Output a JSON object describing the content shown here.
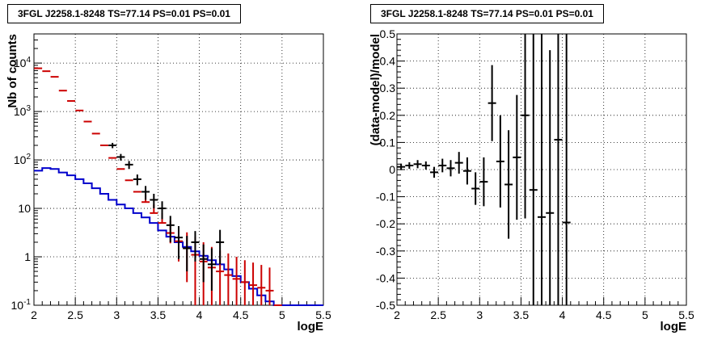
{
  "chart_data": [
    {
      "type": "scatter",
      "title": "3FGL J2258.1-8248 TS=77.14 PS=0.01 PS=0.01",
      "xlabel": "logE",
      "ylabel": "Nb of counts",
      "xlim": [
        2,
        5.5
      ],
      "ylim": [
        0.1,
        40000
      ],
      "yscale": "log",
      "grid": true,
      "x_ticks": [
        "2",
        "2.5",
        "3",
        "3.5",
        "4",
        "4.5",
        "5",
        "5.5"
      ],
      "y_ticks": [
        "10^{-1}",
        "1",
        "10",
        "10^{2}",
        "10^{3}",
        "10^{4}"
      ],
      "series": [
        {
          "color": "#cc0000",
          "x": [
            2.05,
            2.15,
            2.25,
            2.35,
            2.45,
            2.55,
            2.65,
            2.75,
            2.85,
            2.95,
            3.05,
            3.15,
            3.25,
            3.35,
            3.45,
            3.55,
            3.65,
            3.75,
            3.85,
            3.95,
            4.05,
            4.15,
            4.25,
            4.35,
            4.45,
            4.55,
            4.65,
            4.75,
            4.85,
            4.95
          ],
          "y": [
            7800,
            6800,
            5200,
            2700,
            1650,
            1050,
            620,
            350,
            200,
            110,
            65,
            38,
            22,
            13.5,
            8,
            5,
            3.1,
            2.1,
            1.5,
            1.1,
            0.8,
            0.6,
            0.5,
            0.42,
            0.35,
            0.3,
            0.26,
            0.23,
            0.2,
            0.1
          ],
          "err_lo": [
            0,
            0,
            0,
            0,
            0,
            0,
            0,
            0,
            0,
            0,
            0,
            0,
            0,
            0,
            0,
            0,
            1.2,
            1.3,
            1.2,
            1.0,
            0.75,
            0.58,
            0.49,
            0.41,
            0.345,
            0.295,
            0.255,
            0.225,
            0.195,
            0
          ],
          "err_hi": [
            0,
            0,
            0,
            0,
            0,
            0,
            0,
            0,
            0,
            0,
            0,
            0,
            0,
            6,
            4,
            3,
            2.5,
            2.0,
            1.7,
            1.5,
            1.2,
            1.0,
            0.85,
            0.75,
            0.65,
            0.55,
            0.5,
            0.45,
            0.4,
            0
          ]
        },
        {
          "color": "#000000",
          "x": [
            2.95,
            3.05,
            3.15,
            3.25,
            3.35,
            3.45,
            3.55,
            3.65,
            3.75,
            3.85,
            3.95,
            4.05,
            4.15,
            4.25
          ],
          "y": [
            200,
            115,
            80,
            40,
            22,
            15,
            10,
            4.5,
            2.5,
            1.5,
            2.0,
            0.9,
            0.7,
            2.0
          ],
          "err_lo": [
            25,
            18,
            15,
            10,
            7,
            5,
            4,
            2.5,
            1.6,
            1.0,
            1.2,
            0.6,
            0.5,
            1.3
          ],
          "err_hi": [
            25,
            18,
            15,
            10,
            7,
            5,
            4,
            2.5,
            1.8,
            1.2,
            1.4,
            0.9,
            0.8,
            1.6
          ]
        },
        {
          "type": "step",
          "color": "#0000cc",
          "edges": [
            2.0,
            2.1,
            2.2,
            2.3,
            2.4,
            2.5,
            2.6,
            2.7,
            2.8,
            2.9,
            3.0,
            3.1,
            3.2,
            3.3,
            3.4,
            3.5,
            3.6,
            3.7,
            3.8,
            3.9,
            4.0,
            4.1,
            4.2,
            4.3,
            4.4,
            4.5,
            4.6,
            4.7,
            4.8,
            4.9,
            5.0,
            5.1,
            5.2,
            5.3,
            5.4,
            5.5
          ],
          "values": [
            60,
            68,
            65,
            55,
            48,
            40,
            33,
            26,
            20,
            15,
            12,
            10,
            8,
            6.5,
            5,
            3.5,
            2.6,
            2.0,
            1.6,
            1.3,
            1.05,
            0.85,
            0.7,
            0.55,
            0.4,
            0.3,
            0.22,
            0.16,
            0.12,
            0.1,
            0.1,
            0.1,
            0.1,
            0.1,
            0.1
          ]
        }
      ]
    },
    {
      "type": "scatter",
      "title": "3FGL J2258.1-8248 TS=77.14 PS=0.01 PS=0.01",
      "xlabel": "logE",
      "ylabel": "(data-model)/model",
      "xlim": [
        2,
        5.5
      ],
      "ylim": [
        -0.5,
        0.5
      ],
      "grid": true,
      "x_ticks": [
        "2",
        "2.5",
        "3",
        "3.5",
        "4",
        "4.5",
        "5",
        "5.5"
      ],
      "y_ticks": [
        "-0.5",
        "-0.4",
        "-0.3",
        "-0.2",
        "-0.1",
        "0",
        "0.1",
        "0.2",
        "0.3",
        "0.4",
        "0.5"
      ],
      "series": [
        {
          "color": "#000000",
          "x": [
            2.05,
            2.15,
            2.25,
            2.35,
            2.45,
            2.55,
            2.65,
            2.75,
            2.85,
            2.95,
            3.05,
            3.15,
            3.25,
            3.35,
            3.45,
            3.55,
            3.65,
            3.75,
            3.85,
            3.95,
            4.05
          ],
          "y": [
            0.01,
            0.015,
            0.02,
            0.015,
            -0.01,
            0.015,
            0.005,
            0.025,
            -0.005,
            -0.07,
            -0.045,
            0.245,
            0.03,
            -0.055,
            0.045,
            0.2,
            -0.075,
            -0.175,
            -0.16,
            0.11,
            -0.195
          ],
          "err": [
            0.012,
            0.012,
            0.015,
            0.015,
            0.02,
            0.025,
            0.03,
            0.04,
            0.05,
            0.06,
            0.09,
            0.14,
            0.17,
            0.2,
            0.23,
            0.38,
            0.7,
            0.7,
            0.6,
            0.8,
            0.8
          ]
        }
      ]
    }
  ]
}
